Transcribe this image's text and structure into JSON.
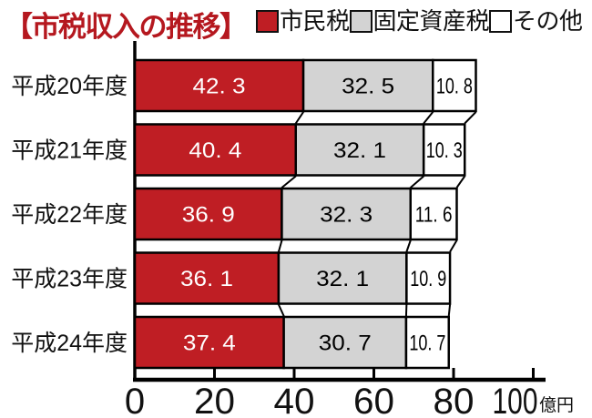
{
  "title": "【市税収入の推移】",
  "colors": {
    "accent_red": "#bf1e24",
    "series_gray": "#d3d3d3",
    "series_white": "#ffffff",
    "line_black": "#000000",
    "title_red": "#b5181f"
  },
  "legend": {
    "items": [
      {
        "label": "市民税",
        "color": "#bf1e24"
      },
      {
        "label": "固定資産税",
        "color": "#d3d3d3"
      },
      {
        "label": "その他",
        "color": "#ffffff"
      }
    ]
  },
  "chart_data": {
    "type": "bar",
    "orientation": "horizontal",
    "stacked": true,
    "title": "市税収入の推移",
    "categories": [
      "平成20年度",
      "平成21年度",
      "平成22年度",
      "平成23年度",
      "平成24年度"
    ],
    "series": [
      {
        "name": "市民税",
        "color": "#bf1e24",
        "text_color": "#ffffff",
        "values": [
          42.3,
          40.4,
          36.9,
          36.1,
          37.4
        ]
      },
      {
        "name": "固定資産税",
        "color": "#d3d3d3",
        "text_color": "#000000",
        "values": [
          32.5,
          32.1,
          32.3,
          32.1,
          30.7
        ]
      },
      {
        "name": "その他",
        "color": "#ffffff",
        "text_color": "#000000",
        "values": [
          10.8,
          10.3,
          11.6,
          10.9,
          10.7
        ]
      }
    ],
    "value_labels": [
      [
        "42. 3",
        "32. 5",
        "10. 8"
      ],
      [
        "40. 4",
        "32. 1",
        "10. 3"
      ],
      [
        "36. 9",
        "32. 3",
        "11. 6"
      ],
      [
        "36. 1",
        "32. 1",
        "10. 9"
      ],
      [
        "37. 4",
        "30. 7",
        "10. 7"
      ]
    ],
    "x_ticks": [
      0,
      20,
      40,
      60,
      80,
      100
    ],
    "x_tick_labels": [
      "0",
      "20",
      "40",
      "60",
      "80",
      "100"
    ],
    "x_unit": "億円",
    "xlim": [
      0,
      103
    ],
    "grid": false,
    "legend_position": "top-right",
    "connector_lines": true
  }
}
